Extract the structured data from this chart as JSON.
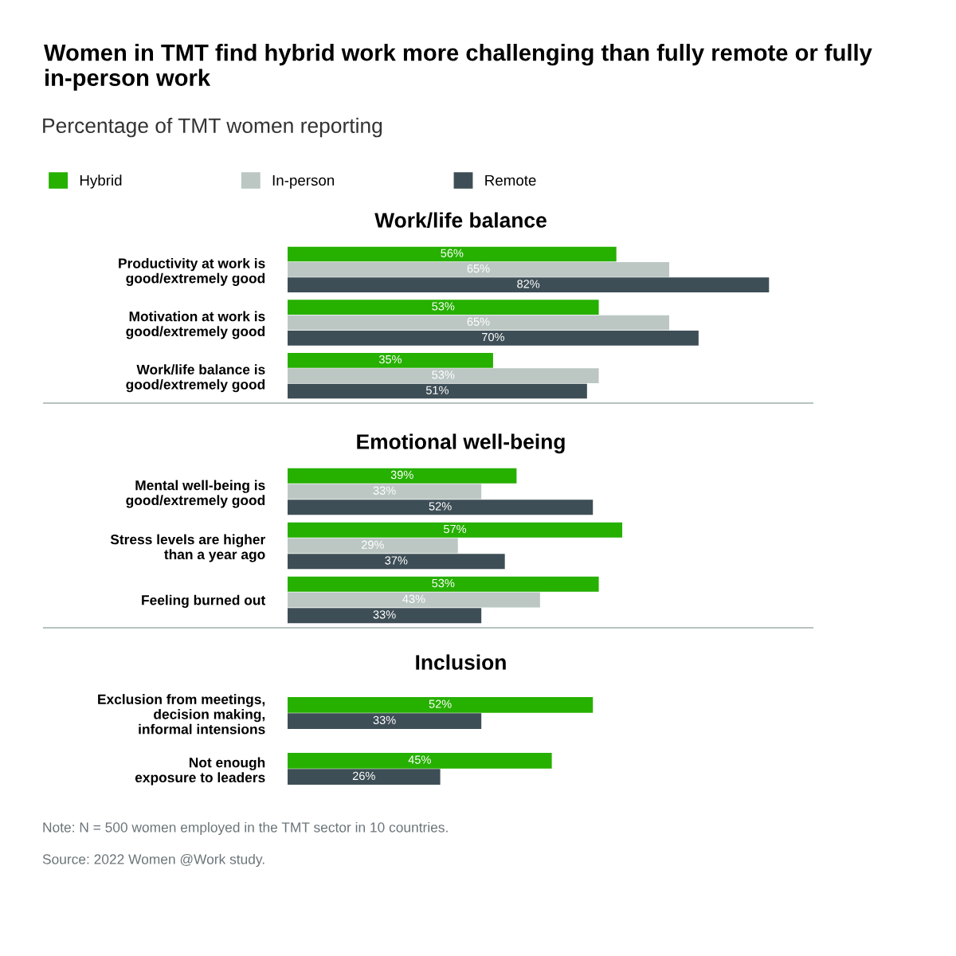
{
  "chart_data": [
    {
      "type": "other",
      "title": "Women in TMT find hybrid work more challenging than fully remote or fully in-person work",
      "subtitle": "Percentage of TMT women reporting",
      "annotations": [
        "Note: N = 500 women employed in the TMT sector in 10 countries.",
        "Source: 2022 Women @Work study."
      ]
    },
    {
      "type": "bar",
      "orientation": "horizontal",
      "title": "Work/life balance",
      "categories": [
        "Productivity at work is\ngood/extremely good",
        "Motivation at work is\ngood/extremely good",
        "Work/life balance is\ngood/extremely good"
      ],
      "legend": "top left",
      "tick_labels": "y",
      "series": [
        {
          "name": "Hybrid",
          "color": "#26b000",
          "values": [
            56,
            53,
            35
          ],
          "value_labels": [
            "56%",
            "53%",
            "35%"
          ]
        },
        {
          "name": "In-person",
          "color": "#bcc7c4",
          "values": [
            65,
            65,
            53
          ],
          "value_labels": [
            "65%",
            "65%",
            "53%"
          ]
        },
        {
          "name": "Remote",
          "color": "#3e4e56",
          "values": [
            82,
            70,
            51
          ],
          "value_labels": [
            "82%",
            "70%",
            "51%"
          ]
        }
      ]
    },
    {
      "type": "bar",
      "orientation": "horizontal",
      "title": "Emotional well-being",
      "categories": [
        "Mental well-being is\ngood/extremely good",
        "Stress levels are higher\nthan a year ago",
        "Feeling burned out"
      ],
      "tick_labels": "y",
      "series": [
        {
          "color": "#26b000",
          "values": [
            39,
            57,
            53
          ],
          "value_labels": [
            "39%",
            "57%",
            "53%"
          ]
        },
        {
          "color": "#bcc7c4",
          "values": [
            33,
            29,
            43
          ],
          "value_labels": [
            "33%",
            "29%",
            "43%"
          ]
        },
        {
          "color": "#3e4e56",
          "values": [
            52,
            37,
            33
          ],
          "value_labels": [
            "52%",
            "37%",
            "33%"
          ]
        }
      ]
    },
    {
      "type": "bar",
      "orientation": "horizontal",
      "title": "Inclusion",
      "categories": [
        "Exclusion from meetings,\ndecision making,\ninformal intensions",
        "Not enough\nexposure to leaders"
      ],
      "tick_labels": "y",
      "series": [
        {
          "color": "#26b000",
          "values": [
            52,
            45
          ],
          "value_labels": [
            "52%",
            "45%"
          ]
        },
        {
          "color": "#3e4e56",
          "values": [
            33,
            26
          ],
          "value_labels": [
            "33%",
            "26%"
          ]
        }
      ]
    }
  ]
}
